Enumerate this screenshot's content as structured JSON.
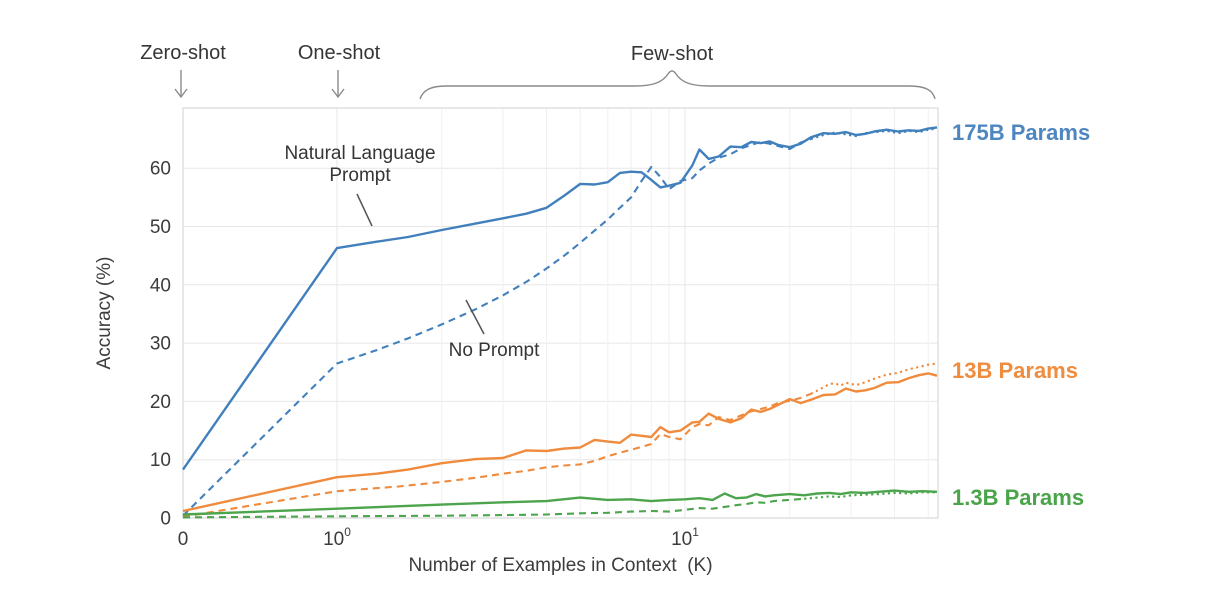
{
  "annotations": {
    "zero_shot": "Zero-shot",
    "one_shot": "One-shot",
    "few_shot": "Few-shot",
    "nlp_line1": "Natural Language",
    "nlp_line2": "Prompt",
    "no_prompt": "No Prompt"
  },
  "series_labels": [
    {
      "text": "175B Params",
      "color": "#4e86c0"
    },
    {
      "text": "13B Params",
      "color": "#ef8c3e"
    },
    {
      "text": "1.3B Params",
      "color": "#4aa44a"
    }
  ],
  "chart_data": {
    "type": "line",
    "title": "",
    "xlabel": "Number of Examples in Context  (K)",
    "ylabel": "Accuracy (%)",
    "x_scale": "symlog (0 then log decades)",
    "xlim": [
      0,
      53
    ],
    "ylim": [
      0,
      70
    ],
    "grid": true,
    "legend_position": "right-edge-labels",
    "colors": {
      "blue": "#4180bd",
      "orange": "#f08a3c",
      "green": "#4ca44c",
      "gridline": "#e7e7e7",
      "minor_gridline": "#f0f0f0",
      "frame": "#d9d9d9",
      "annotation_gray": "#8a8a8a"
    },
    "yticks": [
      0,
      10,
      20,
      30,
      40,
      50,
      60
    ],
    "xticks": [
      {
        "v": 0,
        "label": "0"
      },
      {
        "v": 1,
        "base": "10",
        "exp": "0"
      },
      {
        "v": 10,
        "base": "10",
        "exp": "1"
      }
    ],
    "x_minor_ticks": [
      2,
      3,
      4,
      5,
      6,
      7,
      8,
      9,
      20,
      30,
      40,
      50
    ],
    "series": [
      {
        "name": "175B Params",
        "prompt": "Natural Language Prompt",
        "style": "solid",
        "color": "#4180bd",
        "points": [
          [
            0,
            8.3
          ],
          [
            1,
            46.3
          ],
          [
            1.3,
            47.4
          ],
          [
            1.6,
            48.2
          ],
          [
            2,
            49.4
          ],
          [
            2.5,
            50.5
          ],
          [
            3,
            51.4
          ],
          [
            3.5,
            52.2
          ],
          [
            4,
            53.2
          ],
          [
            4.5,
            55.3
          ],
          [
            5,
            57.3
          ],
          [
            5.5,
            57.2
          ],
          [
            6,
            57.6
          ],
          [
            6.5,
            59.2
          ],
          [
            7,
            59.4
          ],
          [
            7.5,
            59.3
          ],
          [
            8,
            58.0
          ],
          [
            8.5,
            56.7
          ],
          [
            9,
            57.0
          ],
          [
            9.7,
            57.5
          ],
          [
            10.5,
            60.5
          ],
          [
            11,
            63.2
          ],
          [
            11.7,
            61.6
          ],
          [
            12.5,
            62.0
          ],
          [
            13.5,
            63.7
          ],
          [
            14.5,
            63.6
          ],
          [
            15.5,
            64.5
          ],
          [
            16.5,
            64.3
          ],
          [
            17.5,
            64.6
          ],
          [
            18.5,
            64.0
          ],
          [
            20,
            63.6
          ],
          [
            21.5,
            64.2
          ],
          [
            23,
            65.3
          ],
          [
            25,
            66.0
          ],
          [
            27,
            65.9
          ],
          [
            29,
            66.2
          ],
          [
            31,
            65.7
          ],
          [
            33,
            65.9
          ],
          [
            35,
            66.3
          ],
          [
            38,
            66.6
          ],
          [
            41,
            66.3
          ],
          [
            44,
            66.5
          ],
          [
            47,
            66.4
          ],
          [
            50,
            66.8
          ],
          [
            53,
            67.0
          ]
        ]
      },
      {
        "name": "175B Params",
        "prompt": "No Prompt",
        "style": "dashed",
        "color": "#4180bd",
        "points": [
          [
            0,
            0.4
          ],
          [
            1,
            26.5
          ],
          [
            1.3,
            28.8
          ],
          [
            1.6,
            30.8
          ],
          [
            2,
            33.2
          ],
          [
            2.5,
            35.8
          ],
          [
            3,
            38.2
          ],
          [
            3.5,
            40.5
          ],
          [
            4,
            42.8
          ],
          [
            4.5,
            45.0
          ],
          [
            5,
            47.2
          ],
          [
            5.5,
            49.3
          ],
          [
            6,
            51.2
          ],
          [
            6.5,
            53.2
          ],
          [
            7,
            55.0
          ],
          [
            7.5,
            57.8
          ],
          [
            8,
            60.2
          ],
          [
            8.5,
            58.5
          ],
          [
            9,
            56.4
          ],
          [
            9.7,
            57.8
          ],
          [
            10.5,
            58.3
          ],
          [
            11,
            59.6
          ],
          [
            11.7,
            60.8
          ],
          [
            12.5,
            61.8
          ],
          [
            13.5,
            62.4
          ],
          [
            14.5,
            63.4
          ],
          [
            15.5,
            64.0
          ],
          [
            16.5,
            64.5
          ],
          [
            17.5,
            64.2
          ],
          [
            18.5,
            63.8
          ],
          [
            20,
            63.3
          ],
          [
            21.5,
            64.4
          ],
          [
            23,
            65.0
          ],
          [
            25,
            65.7
          ],
          [
            27,
            66.1
          ],
          [
            29,
            65.8
          ],
          [
            31,
            65.5
          ],
          [
            33,
            66.0
          ],
          [
            35,
            66.2
          ],
          [
            38,
            66.4
          ],
          [
            41,
            66.0
          ],
          [
            44,
            66.4
          ],
          [
            47,
            66.2
          ],
          [
            50,
            66.6
          ],
          [
            53,
            66.8
          ]
        ]
      },
      {
        "name": "13B Params",
        "prompt": "Natural Language Prompt",
        "style": "solid",
        "color": "#f08a3c",
        "points": [
          [
            0,
            1.2
          ],
          [
            1,
            7.0
          ],
          [
            1.3,
            7.6
          ],
          [
            1.6,
            8.3
          ],
          [
            2,
            9.4
          ],
          [
            2.5,
            10.1
          ],
          [
            3,
            10.3
          ],
          [
            3.5,
            11.6
          ],
          [
            4,
            11.5
          ],
          [
            4.5,
            11.9
          ],
          [
            5,
            12.1
          ],
          [
            5.5,
            13.4
          ],
          [
            6,
            13.1
          ],
          [
            6.5,
            12.9
          ],
          [
            7,
            14.3
          ],
          [
            7.5,
            14.1
          ],
          [
            8,
            13.9
          ],
          [
            8.5,
            15.6
          ],
          [
            9,
            14.7
          ],
          [
            9.7,
            15.0
          ],
          [
            10.5,
            16.4
          ],
          [
            11,
            16.5
          ],
          [
            11.7,
            17.9
          ],
          [
            12.5,
            17.0
          ],
          [
            13.5,
            16.4
          ],
          [
            14.5,
            17.1
          ],
          [
            15.5,
            18.6
          ],
          [
            16.5,
            18.2
          ],
          [
            17.5,
            18.7
          ],
          [
            18.5,
            19.4
          ],
          [
            20,
            20.4
          ],
          [
            21.5,
            19.7
          ],
          [
            23,
            20.3
          ],
          [
            25,
            21.1
          ],
          [
            27,
            21.2
          ],
          [
            29,
            22.2
          ],
          [
            31,
            21.7
          ],
          [
            33,
            21.9
          ],
          [
            35,
            22.3
          ],
          [
            38,
            23.2
          ],
          [
            41,
            23.3
          ],
          [
            44,
            24.0
          ],
          [
            47,
            24.5
          ],
          [
            50,
            24.8
          ],
          [
            53,
            24.4
          ]
        ]
      },
      {
        "name": "13B Params",
        "prompt": "No Prompt",
        "style": "dashed",
        "color": "#f08a3c",
        "points": [
          [
            0,
            0.2
          ],
          [
            1,
            4.6
          ],
          [
            1.5,
            5.4
          ],
          [
            2,
            6.2
          ],
          [
            2.5,
            6.9
          ],
          [
            3,
            7.6
          ],
          [
            3.5,
            8.1
          ],
          [
            4,
            8.7
          ],
          [
            4.5,
            9.0
          ],
          [
            5,
            9.2
          ],
          [
            5.5,
            9.8
          ],
          [
            6,
            10.6
          ],
          [
            6.5,
            11.2
          ],
          [
            7,
            11.7
          ],
          [
            7.5,
            12.2
          ],
          [
            8,
            12.7
          ],
          [
            8.5,
            14.4
          ],
          [
            9,
            13.9
          ],
          [
            9.7,
            13.5
          ],
          [
            10.5,
            15.6
          ],
          [
            11,
            16.1
          ],
          [
            11.7,
            15.9
          ],
          [
            12.5,
            17.3
          ],
          [
            13.5,
            16.8
          ],
          [
            14.5,
            17.6
          ],
          [
            15.5,
            18.3
          ],
          [
            16.5,
            18.7
          ],
          [
            17.5,
            19.1
          ],
          [
            18.5,
            19.7
          ],
          [
            20,
            20.1
          ],
          [
            21.5,
            20.6
          ],
          [
            23,
            21.3
          ],
          [
            25,
            22.4
          ],
          [
            26,
            23.0
          ],
          [
            27,
            23.1
          ],
          [
            28,
            22.7
          ],
          [
            29,
            23.2
          ],
          [
            31,
            22.8
          ],
          [
            33,
            23.3
          ],
          [
            35,
            23.9
          ],
          [
            38,
            24.6
          ],
          [
            41,
            24.9
          ],
          [
            44,
            25.5
          ],
          [
            47,
            25.9
          ],
          [
            50,
            26.3
          ],
          [
            53,
            26.5
          ]
        ]
      },
      {
        "name": "1.3B Params",
        "prompt": "Natural Language Prompt",
        "style": "solid",
        "color": "#4ca44c",
        "points": [
          [
            0,
            0.6
          ],
          [
            1,
            1.6
          ],
          [
            2,
            2.3
          ],
          [
            3,
            2.7
          ],
          [
            4,
            2.9
          ],
          [
            5,
            3.5
          ],
          [
            6,
            3.1
          ],
          [
            7,
            3.2
          ],
          [
            8,
            2.9
          ],
          [
            9,
            3.1
          ],
          [
            10,
            3.2
          ],
          [
            11,
            3.4
          ],
          [
            12,
            3.1
          ],
          [
            13,
            4.2
          ],
          [
            14,
            3.4
          ],
          [
            15,
            3.5
          ],
          [
            16,
            4.1
          ],
          [
            17,
            3.7
          ],
          [
            18,
            3.9
          ],
          [
            20,
            4.1
          ],
          [
            22,
            3.9
          ],
          [
            24,
            4.2
          ],
          [
            26,
            4.3
          ],
          [
            28,
            4.1
          ],
          [
            30,
            4.4
          ],
          [
            33,
            4.3
          ],
          [
            36,
            4.5
          ],
          [
            40,
            4.7
          ],
          [
            44,
            4.5
          ],
          [
            48,
            4.6
          ],
          [
            53,
            4.5
          ]
        ]
      },
      {
        "name": "1.3B Params",
        "prompt": "No Prompt",
        "style": "dashed",
        "color": "#4ca44c",
        "points": [
          [
            0,
            0.1
          ],
          [
            1,
            0.3
          ],
          [
            2,
            0.4
          ],
          [
            3,
            0.5
          ],
          [
            4,
            0.6
          ],
          [
            5,
            0.8
          ],
          [
            6,
            0.9
          ],
          [
            7,
            1.1
          ],
          [
            8,
            1.2
          ],
          [
            9,
            1.1
          ],
          [
            10,
            1.4
          ],
          [
            11,
            1.7
          ],
          [
            12,
            1.6
          ],
          [
            13,
            1.9
          ],
          [
            14,
            2.2
          ],
          [
            15,
            2.4
          ],
          [
            16,
            2.7
          ],
          [
            17,
            2.6
          ],
          [
            18,
            2.9
          ],
          [
            20,
            3.1
          ],
          [
            22,
            3.3
          ],
          [
            24,
            3.5
          ],
          [
            26,
            3.7
          ],
          [
            28,
            3.6
          ],
          [
            30,
            3.9
          ],
          [
            33,
            4.0
          ],
          [
            36,
            4.1
          ],
          [
            40,
            4.3
          ],
          [
            44,
            4.2
          ],
          [
            48,
            4.4
          ],
          [
            53,
            4.4
          ]
        ]
      }
    ]
  }
}
